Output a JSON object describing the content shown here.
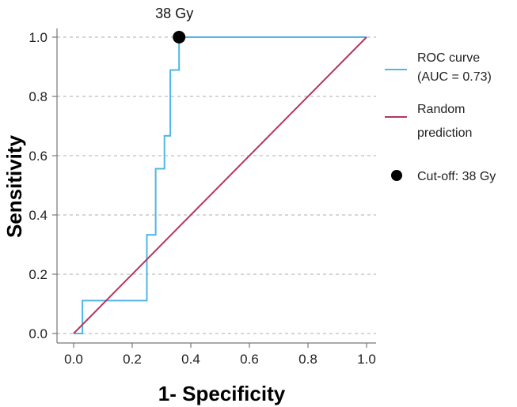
{
  "chart_data": {
    "type": "line",
    "xlabel": "1- Specificity",
    "ylabel": "Sensitivity",
    "xlim": [
      0.0,
      1.0
    ],
    "ylim": [
      0.0,
      1.0
    ],
    "x_ticks": [
      "0.0",
      "0.2",
      "0.4",
      "0.6",
      "0.8",
      "1.0"
    ],
    "y_ticks": [
      "0.0",
      "0.2",
      "0.4",
      "0.6",
      "0.8",
      "1.0"
    ],
    "grid": "horizontal dashed",
    "legend_position": "right",
    "series": [
      {
        "name": "ROC curve",
        "legend_lines": [
          "ROC curve",
          "(AUC = 0.73)"
        ],
        "auc": 0.73,
        "color": "#4FB6E6",
        "x": [
          0.0,
          0.03,
          0.03,
          0.25,
          0.25,
          0.28,
          0.28,
          0.31,
          0.31,
          0.33,
          0.33,
          0.36,
          0.36,
          1.0
        ],
        "y": [
          0.0,
          0.0,
          0.111,
          0.111,
          0.333,
          0.333,
          0.556,
          0.556,
          0.667,
          0.667,
          0.889,
          0.889,
          1.0,
          1.0
        ]
      },
      {
        "name": "Random prediction",
        "legend_lines": [
          "Random",
          "prediction"
        ],
        "color": "#B5375E",
        "x": [
          0.0,
          1.0
        ],
        "y": [
          0.0,
          1.0
        ]
      }
    ],
    "cutoff": {
      "label": "Cut-off: 38 Gy",
      "annotation": "38 Gy",
      "x": 0.36,
      "y": 1.0,
      "color": "#000000"
    }
  }
}
